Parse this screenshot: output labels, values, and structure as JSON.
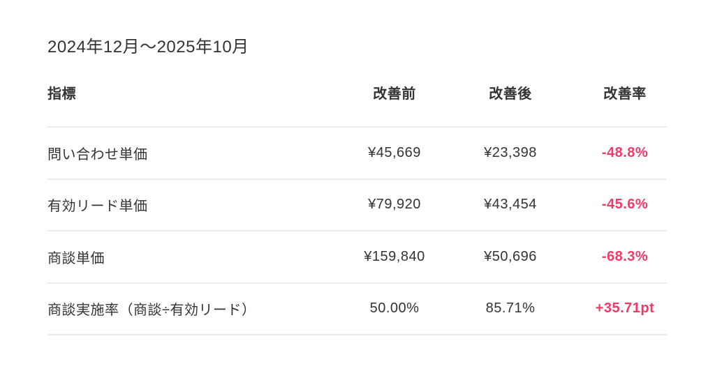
{
  "page": {
    "title": "2024年12月〜2025年10月"
  },
  "colors": {
    "text": "#333333",
    "accent_negative_positive_rate": "#f23a68",
    "divider": "#ececec",
    "background": "#ffffff"
  },
  "table": {
    "columns": [
      "指標",
      "改善前",
      "改善後",
      "改善率"
    ],
    "rows": [
      {
        "label": "問い合わせ単価",
        "before": "¥45,669",
        "after": "¥23,398",
        "rate": "-48.8%"
      },
      {
        "label": "有効リード単価",
        "before": "¥79,920",
        "after": "¥43,454",
        "rate": "-45.6%"
      },
      {
        "label": "商談単価",
        "before": "¥159,840",
        "after": "¥50,696",
        "rate": "-68.3%"
      },
      {
        "label": "商談実施率（商談÷有効リード）",
        "before": "50.00%",
        "after": "85.71%",
        "rate": "+35.71pt"
      }
    ]
  },
  "chart_data": {
    "type": "table",
    "title": "2024年12月〜2025年10月",
    "columns": [
      "指標",
      "改善前",
      "改善後",
      "改善率"
    ],
    "rows": [
      [
        "問い合わせ単価",
        "¥45,669",
        "¥23,398",
        "-48.8%"
      ],
      [
        "有効リード単価",
        "¥79,920",
        "¥43,454",
        "-45.6%"
      ],
      [
        "商談単価",
        "¥159,840",
        "¥50,696",
        "-68.3%"
      ],
      [
        "商談実施率（商談÷有効リード）",
        "50.00%",
        "85.71%",
        "+35.71pt"
      ]
    ],
    "notes": {
      "rate_column_color": "#f23a68",
      "value_alignment": "center",
      "label_alignment": "left"
    }
  }
}
